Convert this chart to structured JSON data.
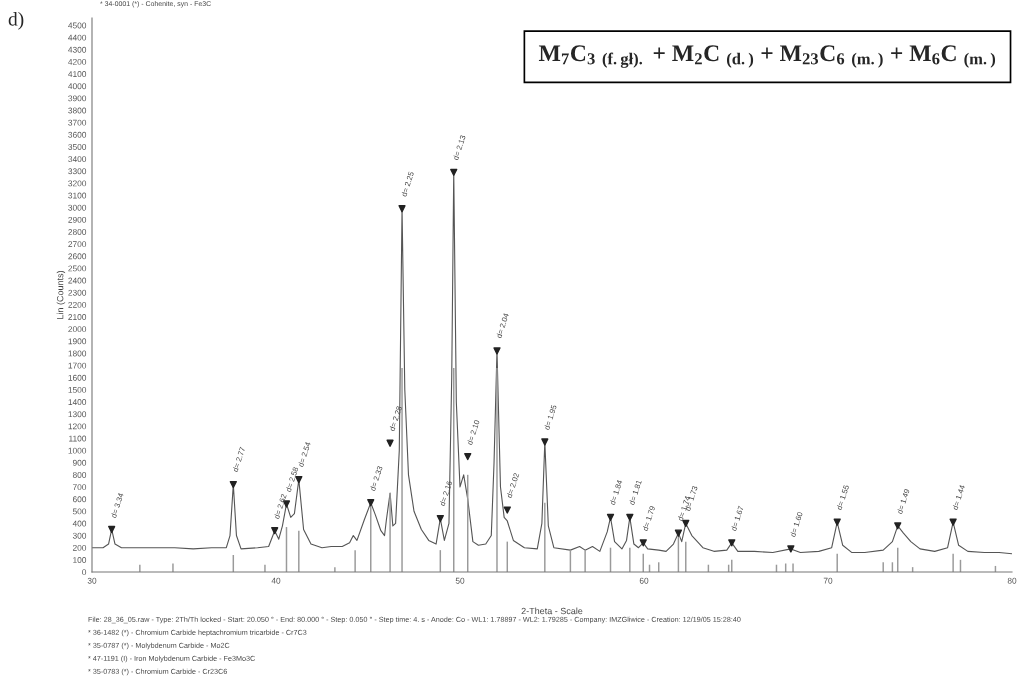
{
  "chart_data": {
    "type": "line",
    "title": "M$_{7}$C$_{3}$ $_{(f.gł).}$ + M$_{2}$C $_{(d.)}$ + M$_{23}$C$_{6}$ $_{(m.)}$ + M$_{6}$C $_{(m.)}$",
    "xlabel": "2-Theta - Scale",
    "ylabel": "Lin (Counts)",
    "xlim": [
      30,
      80
    ],
    "xticks": [
      30,
      40,
      50,
      60,
      70,
      80
    ],
    "ylim": [
      0,
      4560
    ],
    "yticks": [
      0,
      100,
      200,
      300,
      400,
      500,
      600,
      700,
      800,
      900,
      1000,
      1100,
      1200,
      1300,
      1400,
      1500,
      1600,
      1700,
      1800,
      1900,
      2000,
      2100,
      2200,
      2300,
      2400,
      2500,
      2600,
      2700,
      2800,
      2900,
      3000,
      3100,
      3200,
      3300,
      3400,
      3500,
      3600,
      3700,
      3800,
      3900,
      4000,
      4100,
      4200,
      4300,
      4400,
      4500
    ],
    "grid": false,
    "legend": false,
    "series": [
      {
        "color": "#555555",
        "line_style": "solid",
        "marker": "none",
        "x": [
          30.0,
          30.6,
          30.9,
          31.07,
          31.25,
          31.6,
          32.5,
          33.5,
          34.5,
          35.5,
          36.5,
          37.3,
          37.5,
          37.68,
          37.85,
          38.1,
          39.0,
          39.6,
          39.93,
          40.15,
          40.35,
          40.57,
          40.8,
          41.0,
          41.24,
          41.5,
          41.9,
          42.5,
          43.0,
          43.6,
          44.0,
          44.2,
          44.4,
          44.8,
          45.15,
          45.4,
          45.7,
          45.9,
          46.0,
          46.2,
          46.35,
          46.5,
          46.7,
          46.85,
          47.0,
          47.2,
          47.5,
          47.9,
          48.3,
          48.7,
          48.93,
          49.15,
          49.4,
          49.55,
          49.66,
          49.8,
          50.0,
          50.2,
          50.42,
          50.7,
          51.0,
          51.4,
          51.7,
          51.85,
          52.01,
          52.2,
          52.4,
          52.57,
          52.9,
          53.5,
          54.2,
          54.45,
          54.61,
          54.8,
          55.1,
          56.0,
          56.5,
          56.8,
          57.2,
          57.6,
          58.0,
          58.18,
          58.4,
          58.8,
          59.05,
          59.23,
          59.45,
          59.7,
          59.96,
          60.2,
          60.8,
          61.2,
          61.6,
          61.87,
          62.05,
          62.27,
          62.6,
          63.2,
          63.8,
          64.5,
          64.77,
          65.1,
          66.0,
          67.0,
          67.98,
          68.5,
          69.5,
          70.2,
          70.5,
          70.8,
          71.3,
          72.0,
          73.0,
          73.5,
          73.79,
          74.1,
          74.5,
          75.0,
          75.8,
          76.5,
          76.8,
          77.1,
          77.6,
          78.5,
          79.3,
          80.0
        ],
        "values": [
          200,
          200,
          230,
          350,
          230,
          200,
          200,
          200,
          200,
          190,
          200,
          200,
          300,
          720,
          300,
          190,
          200,
          210,
          340,
          270,
          380,
          560,
          450,
          480,
          760,
          350,
          230,
          200,
          210,
          210,
          240,
          300,
          260,
          430,
          570,
          470,
          340,
          300,
          430,
          650,
          380,
          400,
          1000,
          2990,
          1500,
          800,
          500,
          350,
          260,
          230,
          440,
          260,
          400,
          1600,
          3290,
          1400,
          700,
          800,
          600,
          250,
          220,
          230,
          300,
          900,
          1820,
          700,
          450,
          420,
          260,
          200,
          190,
          400,
          1070,
          380,
          200,
          180,
          210,
          180,
          210,
          170,
          330,
          450,
          250,
          190,
          260,
          450,
          230,
          200,
          240,
          190,
          180,
          170,
          230,
          320,
          250,
          400,
          300,
          200,
          170,
          180,
          240,
          170,
          170,
          160,
          190,
          160,
          170,
          200,
          410,
          220,
          160,
          160,
          180,
          250,
          380,
          320,
          250,
          190,
          170,
          200,
          410,
          220,
          170,
          160,
          160,
          150
        ]
      },
      {
        "type": "bar",
        "color": "#9a9a9a",
        "x": [
          32.6,
          34.4,
          37.68,
          39.4,
          40.57,
          41.24,
          43.2,
          44.3,
          45.15,
          46.2,
          46.85,
          48.93,
          49.66,
          50.42,
          52.01,
          52.57,
          54.61,
          56.0,
          56.8,
          58.18,
          59.23,
          59.96,
          60.3,
          60.8,
          61.87,
          62.27,
          63.5,
          64.6,
          64.77,
          67.2,
          67.7,
          68.1,
          70.5,
          73.0,
          73.5,
          73.79,
          74.6,
          76.8,
          77.2,
          79.1
        ],
        "values": [
          60,
          70,
          140,
          60,
          370,
          340,
          40,
          180,
          560,
          650,
          1680,
          180,
          1680,
          800,
          1680,
          250,
          570,
          180,
          180,
          200,
          200,
          150,
          60,
          80,
          300,
          250,
          60,
          60,
          100,
          60,
          70,
          70,
          150,
          80,
          80,
          200,
          40,
          150,
          100,
          50
        ]
      },
      {
        "type": "scatter",
        "color": "#222222",
        "marker": "triangle",
        "x": [
          31.07,
          37.68,
          39.93,
          40.57,
          41.24,
          45.15,
          46.2,
          46.85,
          48.93,
          49.66,
          50.42,
          52.01,
          52.57,
          54.61,
          58.18,
          59.23,
          59.96,
          61.87,
          62.27,
          64.77,
          67.98,
          70.5,
          73.79,
          76.8
        ],
        "values": [
          350,
          720,
          340,
          560,
          760,
          570,
          1060,
          2990,
          440,
          3290,
          950,
          1820,
          510,
          1070,
          450,
          450,
          240,
          320,
          400,
          240,
          190,
          410,
          380,
          410
        ]
      }
    ],
    "annotations": [
      "d)",
      "* 34-0001 (*) - Cohenite, syn - Fe3C",
      "File: 28_36_05.raw - Type: 2Th/Th locked - Start: 20.050 ° - End: 80.000 ° - Step: 0.050 ° - Step time: 4. s - Anode: Co - WL1: 1.78897 - WL2: 1.79285 - Company: IMZGliwice - Creation: 12/19/05 15:28:40",
      "* 36-1482 (*) - Chromium Carbide heptachromium tricarbide - Cr7C3",
      "* 35-0787 (*) - Molybdenum Carbide - Mo2C",
      "* 47-1191 (I) - Iron Molybdenum Carbide - Fe3Mo3C",
      "* 35-0783 (*) - Chromium Carbide - Cr23C6",
      {
        "text": "d= 3.34",
        "x": 31.07,
        "y": 345
      },
      {
        "text": "d= 2.77",
        "x": 37.68,
        "y": 724
      },
      {
        "text": "d= 2.62",
        "x": 39.93,
        "y": 337
      },
      {
        "text": "d= 2.58",
        "x": 40.57,
        "y": 559
      },
      {
        "text": "d= 2.54",
        "x": 41.24,
        "y": 765
      },
      {
        "text": "d= 2.33",
        "x": 45.15,
        "y": 567
      },
      {
        "text": "d= 2.28",
        "x": 46.2,
        "y": 1060
      },
      {
        "text": "d= 2.25",
        "x": 46.85,
        "y": 2990
      },
      {
        "text": "d= 2.16",
        "x": 48.93,
        "y": 444
      },
      {
        "text": "d= 2.13",
        "x": 49.66,
        "y": 3290
      },
      {
        "text": "d= 2.10",
        "x": 50.42,
        "y": 946
      },
      {
        "text": "d= 2.04",
        "x": 52.01,
        "y": 1825
      },
      {
        "text": "d= 2.02",
        "x": 52.57,
        "y": 510
      },
      {
        "text": "d= 1.95",
        "x": 54.61,
        "y": 1070
      },
      {
        "text": "d= 1.84",
        "x": 58.18,
        "y": 452
      },
      {
        "text": "d= 1.81",
        "x": 59.23,
        "y": 452
      },
      {
        "text": "d= 1.79",
        "x": 59.96,
        "y": 238
      },
      {
        "text": "d= 1.74",
        "x": 61.87,
        "y": 320
      },
      {
        "text": "d= 1.73",
        "x": 62.27,
        "y": 403
      },
      {
        "text": "d= 1.67",
        "x": 64.77,
        "y": 238
      },
      {
        "text": "d= 1.60",
        "x": 67.98,
        "y": 189
      },
      {
        "text": "d= 1.55",
        "x": 70.5,
        "y": 411
      },
      {
        "text": "d= 1.49",
        "x": 73.79,
        "y": 378
      },
      {
        "text": "d= 1.44",
        "x": 76.8,
        "y": 411
      }
    ]
  }
}
